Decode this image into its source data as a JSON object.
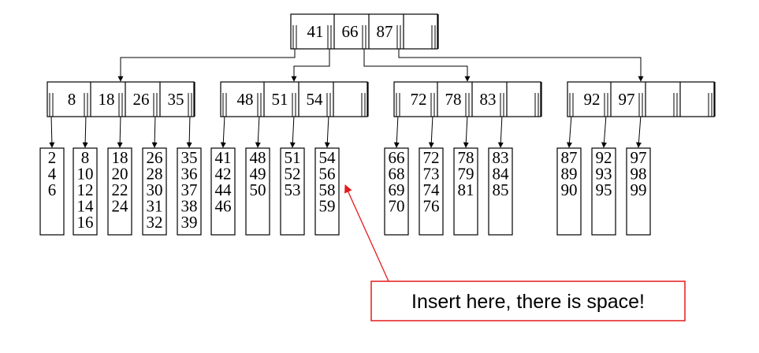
{
  "root": {
    "keys": [
      "41",
      "66",
      "87"
    ]
  },
  "internal_nodes": [
    {
      "keys": [
        "8",
        "18",
        "26",
        "35"
      ]
    },
    {
      "keys": [
        "48",
        "51",
        "54"
      ]
    },
    {
      "keys": [
        "72",
        "78",
        "83"
      ]
    },
    {
      "keys": [
        "92",
        "97"
      ]
    }
  ],
  "leaves": [
    [
      "2",
      "4",
      "6"
    ],
    [
      "8",
      "10",
      "12",
      "14",
      "16"
    ],
    [
      "18",
      "20",
      "22",
      "24"
    ],
    [
      "26",
      "28",
      "30",
      "31",
      "32"
    ],
    [
      "35",
      "36",
      "37",
      "38",
      "39"
    ],
    [
      "41",
      "42",
      "44",
      "46"
    ],
    [
      "48",
      "49",
      "50"
    ],
    [
      "51",
      "52",
      "53"
    ],
    [
      "54",
      "56",
      "58",
      "59"
    ],
    [
      "66",
      "68",
      "69",
      "70"
    ],
    [
      "72",
      "73",
      "74",
      "76"
    ],
    [
      "78",
      "79",
      "81"
    ],
    [
      "83",
      "84",
      "85"
    ],
    [
      "87",
      "89",
      "90"
    ],
    [
      "92",
      "93",
      "95"
    ],
    [
      "97",
      "98",
      "99"
    ]
  ],
  "callout": {
    "text": "Insert here, there is space!",
    "color": "#e31b1b"
  },
  "colors": {
    "line": "#000000",
    "callout": "#e31b1b"
  }
}
